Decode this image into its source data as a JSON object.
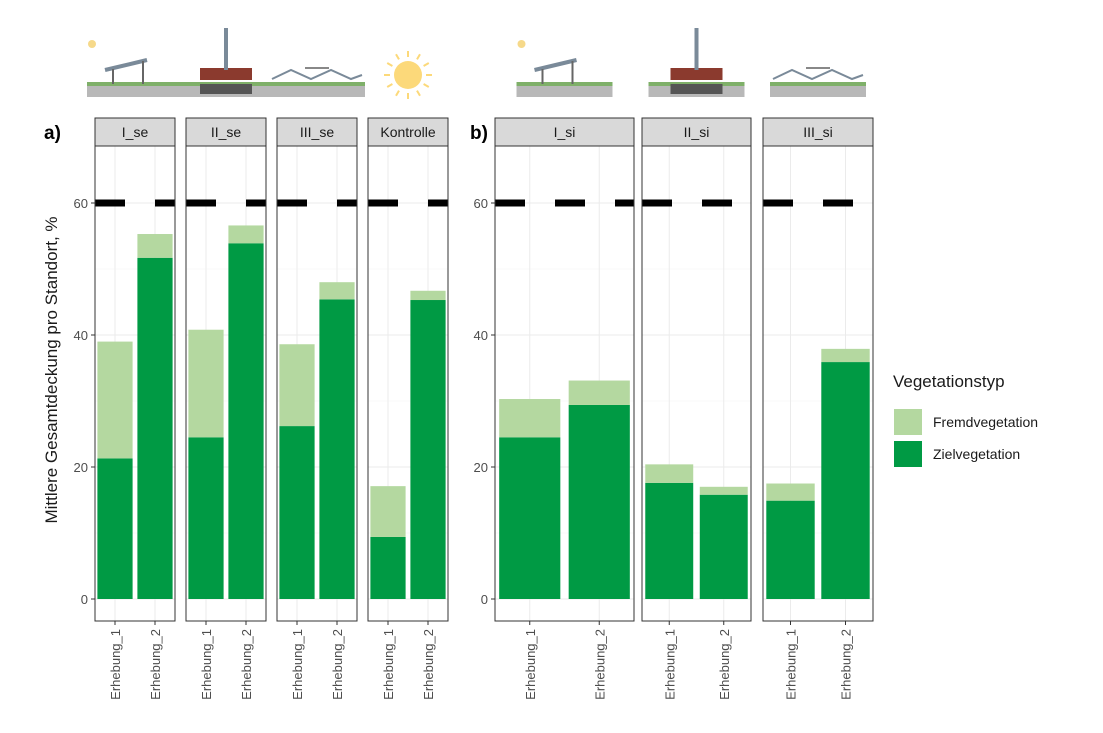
{
  "chart_data": {
    "type": "bar",
    "stacked": true,
    "ylabel": "Mittlere Gesamtdeckung pro Standort, %",
    "ylim": [
      0,
      70
    ],
    "yticks": [
      0,
      20,
      40,
      60
    ],
    "reference_line": 60,
    "grid": true,
    "legend_placement": "right",
    "legend_title": "Vegetationstyp",
    "series_legend": [
      {
        "name": "Fremdvegetation",
        "color": "#b4d8a0"
      },
      {
        "name": "Zielvegetation",
        "color": "#009a44"
      }
    ],
    "categories": [
      "Erhebung_1",
      "Erhebung_2"
    ],
    "panels": [
      {
        "group": "a)",
        "facet": "I_se",
        "icon": "solar-panel-tilted-icon",
        "zielvegetation": [
          21.3,
          51.7
        ],
        "fremdvegetation": [
          17.7,
          3.6
        ]
      },
      {
        "group": "a)",
        "facet": "II_se",
        "icon": "solar-panel-vertical-icon",
        "zielvegetation": [
          24.5,
          53.9
        ],
        "fremdvegetation": [
          16.3,
          2.7
        ]
      },
      {
        "group": "a)",
        "facet": "III_se",
        "icon": "solar-panel-tracker-icon",
        "zielvegetation": [
          26.2,
          45.4
        ],
        "fremdvegetation": [
          12.4,
          2.6
        ]
      },
      {
        "group": "a)",
        "facet": "Kontrolle",
        "icon": "sun-icon",
        "zielvegetation": [
          9.4,
          45.3
        ],
        "fremdvegetation": [
          7.7,
          1.4
        ]
      },
      {
        "group": "b)",
        "facet": "I_si",
        "icon": "solar-panel-tilted-icon",
        "zielvegetation": [
          24.5,
          29.4
        ],
        "fremdvegetation": [
          5.8,
          3.7
        ]
      },
      {
        "group": "b)",
        "facet": "II_si",
        "icon": "solar-panel-vertical-icon",
        "zielvegetation": [
          17.6,
          15.8
        ],
        "fremdvegetation": [
          2.8,
          1.2
        ]
      },
      {
        "group": "b)",
        "facet": "III_si",
        "icon": "solar-panel-tracker-icon",
        "zielvegetation": [
          14.9,
          35.9
        ],
        "fremdvegetation": [
          2.6,
          2.0
        ]
      }
    ]
  },
  "legend": {
    "title": "Vegetationstyp",
    "items": [
      {
        "label": "Fremdvegetation",
        "color": "#b4d8a0"
      },
      {
        "label": "Zielvegetation",
        "color": "#009a44"
      }
    ]
  }
}
